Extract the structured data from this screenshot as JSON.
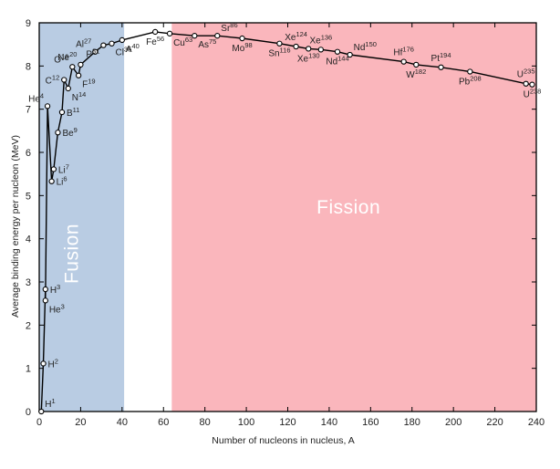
{
  "chart_data": {
    "type": "line",
    "xlabel": "Number of nucleons in nucleus, A",
    "ylabel": "Average binding energy per nucleon (MeV)",
    "xlim": [
      0,
      240
    ],
    "ylim": [
      0,
      9
    ],
    "xticks": [
      0,
      20,
      40,
      60,
      80,
      100,
      120,
      140,
      160,
      180,
      200,
      220,
      240
    ],
    "yticks": [
      0,
      1,
      2,
      3,
      4,
      5,
      6,
      7,
      8,
      9
    ],
    "grid": false,
    "regions": [
      {
        "label": "Fusion",
        "x_range": [
          0,
          41
        ],
        "color": "#b9cce3"
      },
      {
        "label": "Fission",
        "x_range": [
          64,
          240
        ],
        "color": "#fab6bc"
      }
    ],
    "series": [
      {
        "values": [
          {
            "x": 1,
            "y": 0
          },
          {
            "x": 2,
            "y": 1.11
          },
          {
            "x": 3,
            "y": 2.83
          },
          {
            "x": 3,
            "y": 2.57
          },
          {
            "x": 4,
            "y": 7.07
          },
          {
            "x": 6,
            "y": 5.33
          },
          {
            "x": 7,
            "y": 5.61
          },
          {
            "x": 9,
            "y": 6.46
          },
          {
            "x": 11,
            "y": 6.93
          },
          {
            "x": 12,
            "y": 7.68
          },
          {
            "x": 14,
            "y": 7.48
          },
          {
            "x": 16,
            "y": 7.98
          },
          {
            "x": 19,
            "y": 7.78
          },
          {
            "x": 20,
            "y": 8.03
          },
          {
            "x": 27,
            "y": 8.33
          },
          {
            "x": 31,
            "y": 8.48
          },
          {
            "x": 35,
            "y": 8.52
          },
          {
            "x": 40,
            "y": 8.6
          },
          {
            "x": 56,
            "y": 8.79
          },
          {
            "x": 63,
            "y": 8.75
          },
          {
            "x": 75,
            "y": 8.7
          },
          {
            "x": 86,
            "y": 8.7
          },
          {
            "x": 98,
            "y": 8.64
          },
          {
            "x": 116,
            "y": 8.52
          },
          {
            "x": 124,
            "y": 8.45
          },
          {
            "x": 130,
            "y": 8.4
          },
          {
            "x": 136,
            "y": 8.38
          },
          {
            "x": 144,
            "y": 8.33
          },
          {
            "x": 150,
            "y": 8.26
          },
          {
            "x": 176,
            "y": 8.1
          },
          {
            "x": 182,
            "y": 8.03
          },
          {
            "x": 194,
            "y": 7.97
          },
          {
            "x": 208,
            "y": 7.87
          },
          {
            "x": 235,
            "y": 7.59
          },
          {
            "x": 238,
            "y": 7.57
          }
        ]
      }
    ],
    "point_labels": [
      {
        "sym": "H",
        "mass": "1",
        "x": 1,
        "y": 0,
        "place": "tr"
      },
      {
        "sym": "H",
        "mass": "2",
        "x": 2,
        "y": 1.11,
        "place": "r"
      },
      {
        "sym": "H",
        "mass": "3",
        "x": 3,
        "y": 2.83,
        "place": "r"
      },
      {
        "sym": "He",
        "mass": "3",
        "x": 3,
        "y": 2.57,
        "place": "br"
      },
      {
        "sym": "He",
        "mass": "4",
        "x": 4,
        "y": 7.07,
        "place": "tl"
      },
      {
        "sym": "Li",
        "mass": "6",
        "x": 6,
        "y": 5.33,
        "place": "r"
      },
      {
        "sym": "Li",
        "mass": "7",
        "x": 7,
        "y": 5.61,
        "place": "r"
      },
      {
        "sym": "Be",
        "mass": "9",
        "x": 9,
        "y": 6.46,
        "place": "r"
      },
      {
        "sym": "B",
        "mass": "11",
        "x": 11,
        "y": 6.93,
        "place": "r"
      },
      {
        "sym": "C",
        "mass": "12",
        "x": 12,
        "y": 7.68,
        "place": "l"
      },
      {
        "sym": "N",
        "mass": "14",
        "x": 14,
        "y": 7.48,
        "place": "br"
      },
      {
        "sym": "O",
        "mass": "16",
        "x": 16,
        "y": 7.98,
        "place": "tl"
      },
      {
        "sym": "F",
        "mass": "19",
        "x": 19,
        "y": 7.78,
        "place": "br"
      },
      {
        "sym": "Ne",
        "mass": "20",
        "x": 20,
        "y": 8.03,
        "place": "tl"
      },
      {
        "sym": "Al",
        "mass": "27",
        "x": 27,
        "y": 8.33,
        "place": "tl"
      },
      {
        "sym": "P",
        "mass": "31",
        "x": 31,
        "y": 8.48,
        "place": "bl"
      },
      {
        "sym": "Cl",
        "mass": "35",
        "x": 35,
        "y": 8.52,
        "place": "br"
      },
      {
        "sym": "A",
        "mass": "40",
        "x": 40,
        "y": 8.6,
        "place": "br"
      },
      {
        "sym": "Fe",
        "mass": "56",
        "x": 56,
        "y": 8.79,
        "place": "b"
      },
      {
        "sym": "Cu",
        "mass": "63",
        "x": 63,
        "y": 8.75,
        "place": "br"
      },
      {
        "sym": "As",
        "mass": "75",
        "x": 75,
        "y": 8.7,
        "place": "br"
      },
      {
        "sym": "Sr",
        "mass": "86",
        "x": 86,
        "y": 8.7,
        "place": "tr"
      },
      {
        "sym": "Mo",
        "mass": "98",
        "x": 98,
        "y": 8.64,
        "place": "b"
      },
      {
        "sym": "Sn",
        "mass": "116",
        "x": 116,
        "y": 8.52,
        "place": "b"
      },
      {
        "sym": "Xe",
        "mass": "124",
        "x": 124,
        "y": 8.45,
        "place": "t"
      },
      {
        "sym": "Xe",
        "mass": "130",
        "x": 130,
        "y": 8.4,
        "place": "b"
      },
      {
        "sym": "Xe",
        "mass": "136",
        "x": 136,
        "y": 8.38,
        "place": "t"
      },
      {
        "sym": "Nd",
        "mass": "144",
        "x": 144,
        "y": 8.33,
        "place": "b"
      },
      {
        "sym": "Nd",
        "mass": "150",
        "x": 150,
        "y": 8.26,
        "place": "tr"
      },
      {
        "sym": "Hf",
        "mass": "176",
        "x": 176,
        "y": 8.1,
        "place": "t"
      },
      {
        "sym": "W",
        "mass": "182",
        "x": 182,
        "y": 8.03,
        "place": "b"
      },
      {
        "sym": "Pt",
        "mass": "194",
        "x": 194,
        "y": 7.97,
        "place": "t"
      },
      {
        "sym": "Pb",
        "mass": "208",
        "x": 208,
        "y": 7.87,
        "place": "b"
      },
      {
        "sym": "U",
        "mass": "235",
        "x": 235,
        "y": 7.59,
        "place": "t"
      },
      {
        "sym": "U",
        "mass": "238",
        "x": 238,
        "y": 7.57,
        "place": "b"
      }
    ]
  }
}
